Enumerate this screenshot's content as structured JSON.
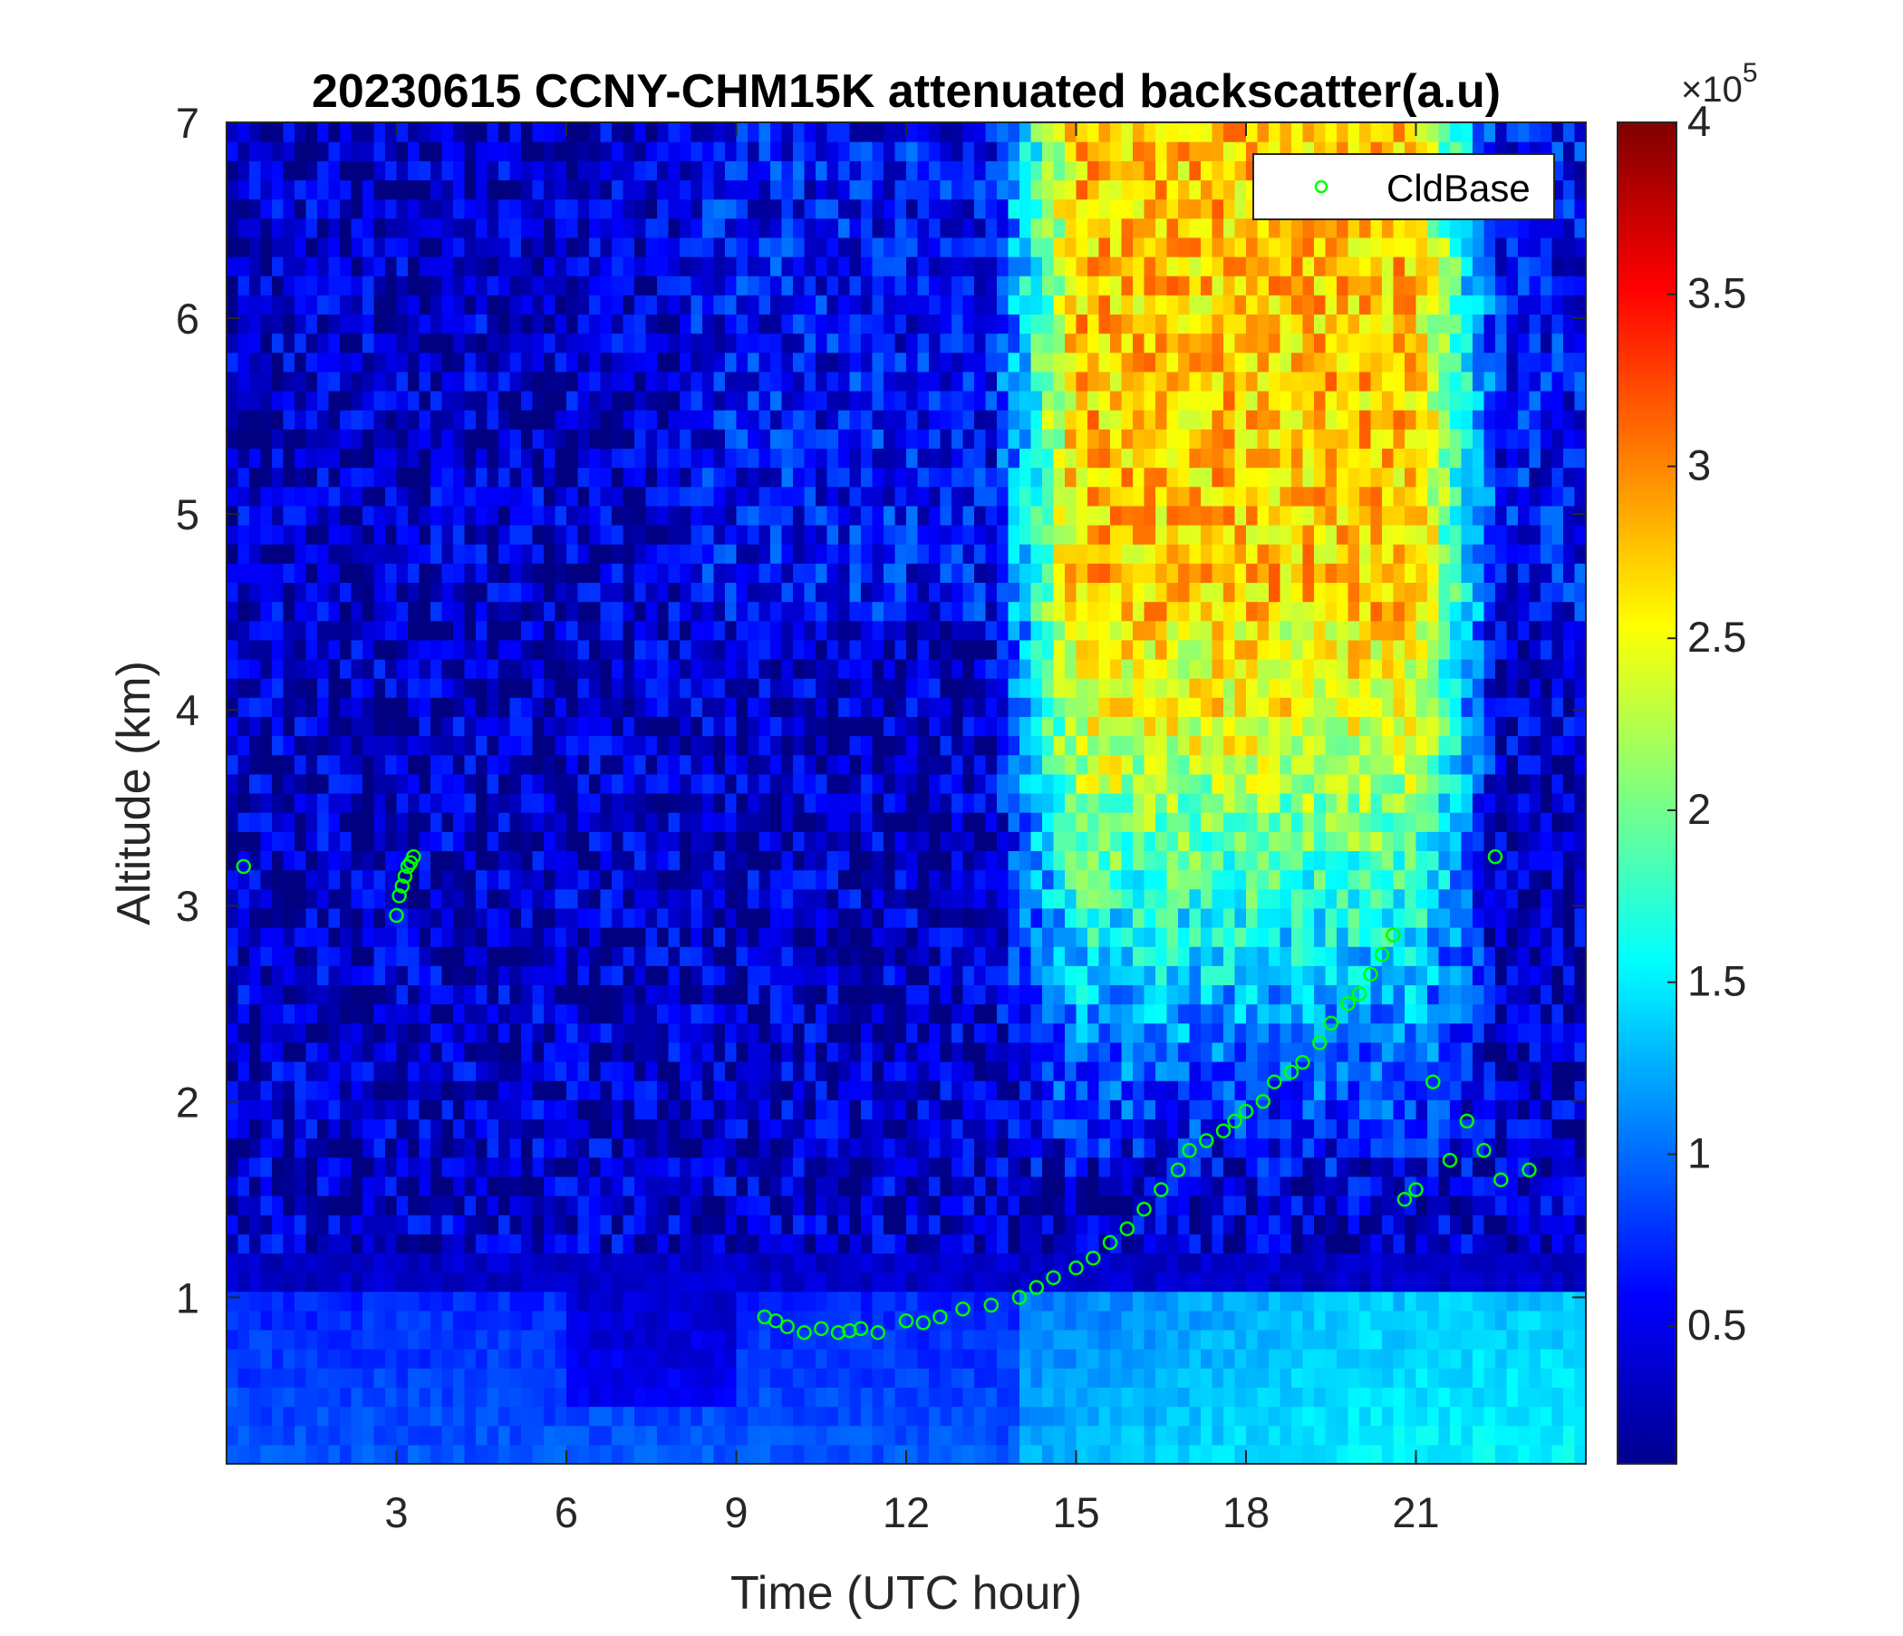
{
  "chart_data": {
    "type": "heatmap",
    "title": "20230615 CCNY-CHM15K attenuated backscatter(a.u)",
    "xlabel": "Time (UTC hour)",
    "ylabel": "Altitude (km)",
    "xlim": [
      0,
      24
    ],
    "ylim": [
      0.15,
      7
    ],
    "x_ticks": [
      3,
      6,
      9,
      12,
      15,
      18,
      21
    ],
    "y_ticks": [
      1,
      2,
      3,
      4,
      5,
      6,
      7
    ],
    "colorbar": {
      "colormap": "jet",
      "range": [
        0.1,
        4
      ],
      "ticks": [
        0.5,
        1,
        1.5,
        2,
        2.5,
        3,
        3.5,
        4
      ],
      "exponent_label": "×10",
      "exponent_power": "5"
    },
    "legend": {
      "position": "top-right",
      "entries": [
        "CldBase"
      ]
    },
    "series": [
      {
        "name": "CldBase",
        "marker": "circle-open",
        "color": "#00ff00",
        "x": [
          0.3,
          3.0,
          3.05,
          3.1,
          3.15,
          3.2,
          3.25,
          3.3,
          9.5,
          9.7,
          9.9,
          10.2,
          10.5,
          10.8,
          11.0,
          11.2,
          11.5,
          12.0,
          12.3,
          12.6,
          13.0,
          13.5,
          14.0,
          14.3,
          14.6,
          15.0,
          15.3,
          15.6,
          15.9,
          16.2,
          16.5,
          16.8,
          17.0,
          17.3,
          17.6,
          17.8,
          18.0,
          18.3,
          18.5,
          18.8,
          19.0,
          19.3,
          19.5,
          19.8,
          20.0,
          20.2,
          20.4,
          20.6,
          20.8,
          21.0,
          21.3,
          21.6,
          21.9,
          22.2,
          22.5,
          23.0,
          22.4
        ],
        "y": [
          3.2,
          2.95,
          3.05,
          3.1,
          3.15,
          3.2,
          3.22,
          3.25,
          0.9,
          0.88,
          0.85,
          0.82,
          0.84,
          0.82,
          0.83,
          0.84,
          0.82,
          0.88,
          0.87,
          0.9,
          0.94,
          0.96,
          1.0,
          1.05,
          1.1,
          1.15,
          1.2,
          1.28,
          1.35,
          1.45,
          1.55,
          1.65,
          1.75,
          1.8,
          1.85,
          1.9,
          1.95,
          2.0,
          2.1,
          2.15,
          2.2,
          2.3,
          2.4,
          2.5,
          2.55,
          2.65,
          2.75,
          2.85,
          1.5,
          1.55,
          2.1,
          1.7,
          1.9,
          1.75,
          1.6,
          1.65,
          3.25
        ]
      }
    ]
  }
}
